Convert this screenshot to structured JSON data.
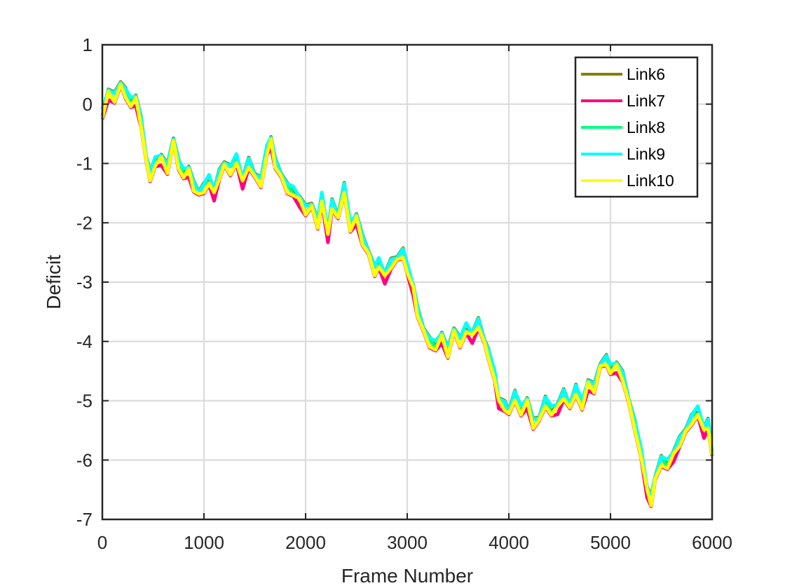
{
  "chart_data": {
    "type": "line",
    "title": "",
    "xlabel": "Frame Number",
    "ylabel": "Deficit",
    "xlim": [
      0,
      6000
    ],
    "ylim": [
      -7,
      1
    ],
    "xticks": [
      0,
      1000,
      2000,
      3000,
      4000,
      5000,
      6000
    ],
    "yticks": [
      1,
      0,
      -1,
      -2,
      -3,
      -4,
      -5,
      -6,
      -7
    ],
    "xtick_labels": [
      "0",
      "1000",
      "2000",
      "3000",
      "4000",
      "5000",
      "6000"
    ],
    "ytick_labels": [
      "1",
      "0",
      "-1",
      "-2",
      "-3",
      "-4",
      "-5",
      "-6",
      "-7"
    ],
    "grid": true,
    "legend_position": "top-right",
    "series": [
      {
        "name": "Link6",
        "color": "#808000",
        "offset": 0.05
      },
      {
        "name": "Link7",
        "color": "#FF0080",
        "offset": -0.08
      },
      {
        "name": "Link8",
        "color": "#00FF80",
        "offset": 0.0
      },
      {
        "name": "Link9",
        "color": "#00FFFF",
        "offset": 0.06
      },
      {
        "name": "Link10",
        "color": "#FFFF00",
        "offset": -0.04
      }
    ],
    "base_x": [
      0,
      60,
      120,
      180,
      230,
      280,
      330,
      380,
      430,
      470,
      520,
      580,
      640,
      700,
      750,
      800,
      850,
      900,
      950,
      1000,
      1050,
      1100,
      1150,
      1200,
      1260,
      1320,
      1380,
      1440,
      1500,
      1560,
      1620,
      1660,
      1700,
      1760,
      1820,
      1880,
      1940,
      2000,
      2060,
      2120,
      2160,
      2220,
      2260,
      2320,
      2380,
      2440,
      2500,
      2560,
      2620,
      2680,
      2720,
      2780,
      2840,
      2900,
      2960,
      3000,
      3060,
      3100,
      3160,
      3220,
      3280,
      3340,
      3400,
      3460,
      3520,
      3580,
      3640,
      3700,
      3760,
      3800,
      3860,
      3900,
      3960,
      4000,
      4060,
      4120,
      4180,
      4240,
      4300,
      4360,
      4420,
      4480,
      4540,
      4600,
      4660,
      4720,
      4780,
      4840,
      4900,
      4960,
      5000,
      5060,
      5120,
      5180,
      5240,
      5300,
      5360,
      5400,
      5440,
      5500,
      5560,
      5620,
      5680,
      5740,
      5800,
      5860,
      5920,
      5960,
      6000
    ],
    "base_y": [
      -0.2,
      0.2,
      0.1,
      0.35,
      0.2,
      0.0,
      0.1,
      -0.3,
      -0.9,
      -1.2,
      -1.0,
      -0.9,
      -1.1,
      -0.6,
      -1.0,
      -1.2,
      -1.1,
      -1.4,
      -1.5,
      -1.4,
      -1.3,
      -1.5,
      -1.2,
      -1.0,
      -1.1,
      -0.95,
      -1.3,
      -1.0,
      -1.2,
      -1.3,
      -0.8,
      -0.6,
      -1.0,
      -1.2,
      -1.4,
      -1.5,
      -1.6,
      -1.8,
      -1.7,
      -2.0,
      -1.6,
      -2.2,
      -1.7,
      -1.9,
      -1.4,
      -2.1,
      -1.9,
      -2.3,
      -2.5,
      -2.8,
      -2.7,
      -2.9,
      -2.7,
      -2.6,
      -2.5,
      -2.8,
      -3.1,
      -3.5,
      -3.8,
      -4.0,
      -4.1,
      -3.9,
      -4.2,
      -3.8,
      -4.0,
      -3.8,
      -3.9,
      -3.7,
      -4.0,
      -4.2,
      -4.6,
      -5.0,
      -5.1,
      -5.2,
      -4.9,
      -5.2,
      -5.0,
      -5.4,
      -5.3,
      -5.0,
      -5.2,
      -5.1,
      -4.9,
      -5.1,
      -4.8,
      -5.1,
      -4.7,
      -4.8,
      -4.4,
      -4.3,
      -4.5,
      -4.4,
      -4.6,
      -5.0,
      -5.4,
      -5.9,
      -6.5,
      -6.7,
      -6.3,
      -6.0,
      -6.1,
      -5.9,
      -5.7,
      -5.5,
      -5.3,
      -5.2,
      -5.5,
      -5.4,
      -5.9
    ]
  }
}
